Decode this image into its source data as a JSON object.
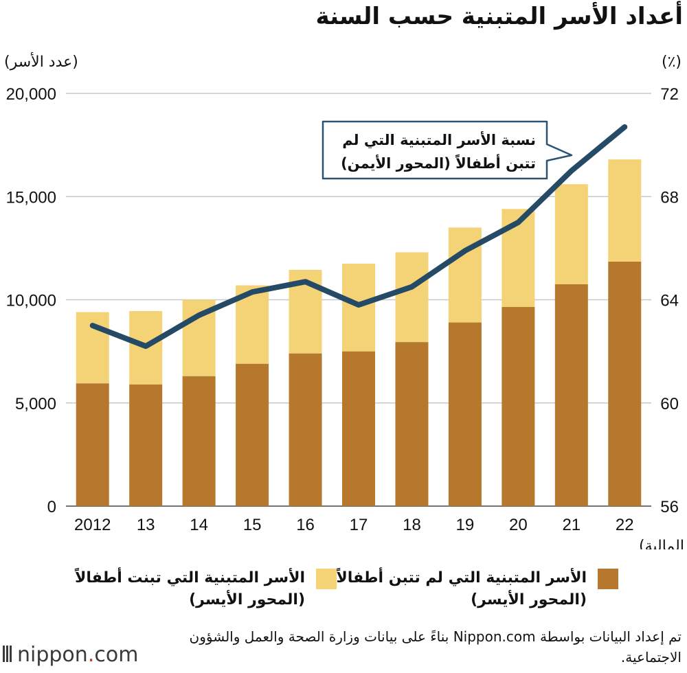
{
  "title": "أعداد الأسر المتبنية حسب السنة",
  "left_axis_unit": "(عدد الأسر)",
  "right_axis_unit": "(٪)",
  "x_axis_label": "(السنة المالية)",
  "callout": {
    "line1": "نسبة الأسر المتبنية التي لم",
    "line2": "تتبن أطفالاً (المحور الأيمن)"
  },
  "legend": {
    "no_children": {
      "line1": "الأسر المتبنية التي لم تتبن أطفالاً",
      "line2": "(المحور الأيسر)",
      "color": "#b5782c"
    },
    "with_children": {
      "line1": "الأسر المتبنية التي تبنت أطفالاً",
      "line2": "(المحور الأيسر)",
      "color": "#f4d376"
    }
  },
  "source": "تم إعداد البيانات بواسطة Nippon.com بناءً على بيانات وزارة الصحة والعمل والشؤون الاجتماعية.",
  "logo": {
    "name": "nippon",
    "dot": ".",
    "domain": "com"
  },
  "chart_data": {
    "type": "bar",
    "stacked": true,
    "categories": [
      "2012",
      "13",
      "14",
      "15",
      "16",
      "17",
      "18",
      "19",
      "20",
      "21",
      "22"
    ],
    "series": [
      {
        "name": "الأسر المتبنية التي لم تتبن أطفالاً",
        "axis": "left",
        "color": "#b5782c",
        "values": [
          5950,
          5900,
          6300,
          6900,
          7400,
          7500,
          7950,
          8900,
          9650,
          10750,
          11850
        ]
      },
      {
        "name": "الأسر المتبنية التي تبنت أطفالاً",
        "axis": "left",
        "color": "#f4d376",
        "values": [
          3450,
          3550,
          3700,
          3800,
          4050,
          4250,
          4350,
          4600,
          4750,
          4850,
          4950
        ]
      },
      {
        "name": "نسبة الأسر المتبنية التي لم تتبن أطفالاً",
        "type": "line",
        "axis": "right",
        "color": "#254a66",
        "values": [
          63.0,
          62.2,
          63.4,
          64.3,
          64.7,
          63.8,
          64.5,
          65.9,
          67.0,
          69.0,
          70.7
        ]
      }
    ],
    "left_axis": {
      "min": 0,
      "max": 20000,
      "ticks": [
        "0",
        "5,000",
        "10,000",
        "15,000",
        "20,000"
      ]
    },
    "right_axis": {
      "min": 56,
      "max": 72,
      "ticks": [
        "56",
        "60",
        "64",
        "68",
        "72"
      ]
    },
    "grid": true
  }
}
